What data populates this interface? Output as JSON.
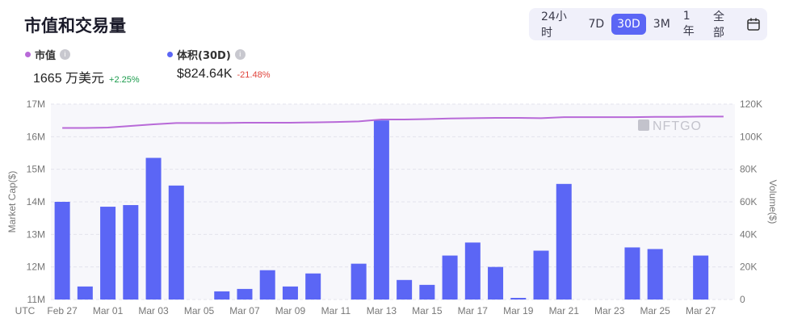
{
  "title": "市值和交易量",
  "ranges": [
    "24小时",
    "7D",
    "30D",
    "3M",
    "1年",
    "全部"
  ],
  "active_range": "30D",
  "legend": {
    "market_cap": {
      "name": "市值",
      "value": "1665 万美元",
      "change": "+2.25%",
      "color": "#b86ad8"
    },
    "volume": {
      "name": "体积(30D)",
      "value": "$824.64K",
      "change": "-21.48%",
      "color": "#5b66f5"
    }
  },
  "watermark": "NFTGO",
  "chart_data": {
    "type": "bar",
    "x_prefix_label": "UTC",
    "x_tick_labels": [
      "Feb 27",
      "Mar 01",
      "Mar 03",
      "Mar 05",
      "Mar 07",
      "Mar 09",
      "Mar 11",
      "Mar 13",
      "Mar 15",
      "Mar 17",
      "Mar 19",
      "Mar 21",
      "Mar 23",
      "Mar 25",
      "Mar 27"
    ],
    "left_axis": {
      "label": "Market Cap($)",
      "ylim": [
        11,
        17
      ],
      "ticks": [
        "17M",
        "16M",
        "15M",
        "14M",
        "13M",
        "12M",
        "11M"
      ],
      "tick_values": [
        17,
        16,
        15,
        14,
        13,
        12,
        11
      ]
    },
    "right_axis": {
      "label": "Volume($)",
      "ylim": [
        0,
        120
      ],
      "ticks": [
        "120K",
        "100K",
        "80K",
        "60K",
        "40K",
        "20K",
        "0"
      ],
      "tick_values": [
        120,
        100,
        80,
        60,
        40,
        20,
        0
      ]
    },
    "categories": [
      "Feb 27",
      "Feb 28",
      "Mar 01",
      "Mar 02",
      "Mar 03",
      "Mar 04",
      "Mar 05",
      "Mar 06",
      "Mar 07",
      "Mar 08",
      "Mar 09",
      "Mar 10",
      "Mar 11",
      "Mar 12",
      "Mar 13",
      "Mar 14",
      "Mar 15",
      "Mar 16",
      "Mar 17",
      "Mar 18",
      "Mar 19",
      "Mar 20",
      "Mar 21",
      "Mar 22",
      "Mar 23",
      "Mar 24",
      "Mar 25",
      "Mar 26",
      "Mar 27",
      "Mar 28"
    ],
    "series": [
      {
        "name": "体积(30D)",
        "axis": "right",
        "type": "bar",
        "color": "#5b66f5",
        "values": [
          60,
          8,
          57,
          58,
          87,
          70,
          0,
          5,
          6.5,
          18,
          8,
          16,
          0,
          22,
          110,
          12,
          9,
          27,
          35,
          20,
          1,
          30,
          71,
          0,
          0,
          32,
          31,
          0,
          27,
          0
        ]
      },
      {
        "name": "市值",
        "axis": "left",
        "type": "line",
        "color": "#b86ad8",
        "values": [
          16.27,
          16.27,
          16.28,
          16.33,
          16.38,
          16.42,
          16.42,
          16.42,
          16.43,
          16.43,
          16.43,
          16.44,
          16.45,
          16.47,
          16.53,
          16.53,
          16.54,
          16.56,
          16.57,
          16.58,
          16.58,
          16.57,
          16.6,
          16.6,
          16.6,
          16.6,
          16.61,
          16.61,
          16.62,
          16.62
        ]
      }
    ],
    "grid": true
  }
}
